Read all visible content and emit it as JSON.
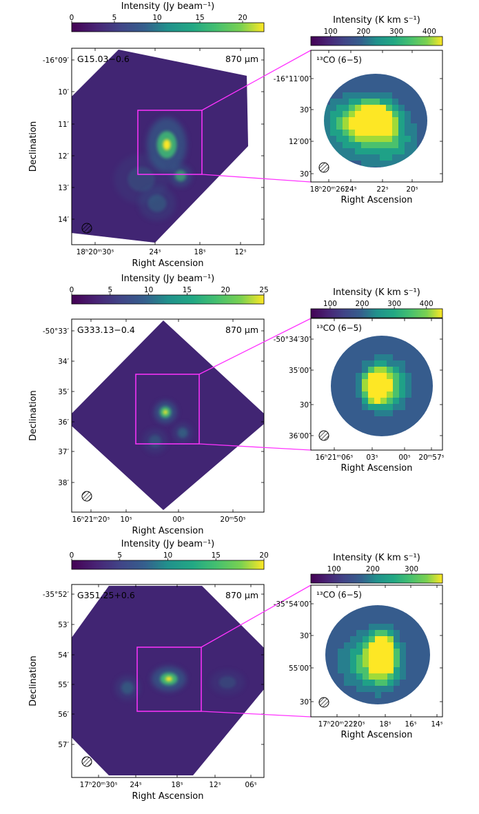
{
  "chart_data": [
    {
      "type": "heatmap",
      "panel": "large",
      "source_label": "G15.03−0.6",
      "band_label": "870 μm",
      "colorbar_label": "Intensity (Jy beam⁻¹)",
      "colorbar_ticks": [
        "0",
        "5",
        "10",
        "15",
        "20"
      ],
      "colorbar_values": [
        0,
        5,
        10,
        15,
        20
      ],
      "colorbar_range": [
        0,
        22.5
      ],
      "colormap": "viridis",
      "xlabel": "Right Ascension",
      "ylabel": "Declination",
      "x_ticks": [
        "18ʰ20ᵐ30ˢ",
        "24ˢ",
        "18ˢ",
        "12ˢ"
      ],
      "y_ticks": [
        "-16°09′",
        "10′",
        "11′",
        "12′",
        "13′",
        "14′"
      ],
      "peaks": [
        {
          "label": "main",
          "intensity": 22
        },
        {
          "label": "secondary",
          "intensity": 14
        }
      ],
      "zoom_box": "13CO(6−5) region"
    },
    {
      "type": "heatmap",
      "panel": "zoom",
      "line_label": "¹³CO (6−5)",
      "colorbar_label": "Intensity (K km s⁻¹)",
      "colorbar_ticks": [
        "100",
        "200",
        "300",
        "400"
      ],
      "colorbar_values": [
        100,
        200,
        300,
        400
      ],
      "colorbar_range": [
        40,
        440
      ],
      "colormap": "viridis",
      "xlabel": "Right Ascension",
      "x_ticks": [
        "18ʰ20ᵐ26ˢ",
        "24ˢ",
        "22ˢ",
        "20ˢ"
      ],
      "y_ticks": [
        "-16°11′00″",
        "30″",
        "12′00″",
        "30″"
      ]
    },
    {
      "type": "heatmap",
      "panel": "large",
      "source_label": "G333.13−0.4",
      "band_label": "870 μm",
      "colorbar_label": "Intensity (Jy beam⁻¹)",
      "colorbar_ticks": [
        "0",
        "5",
        "10",
        "15",
        "20",
        "25"
      ],
      "colorbar_values": [
        0,
        5,
        10,
        15,
        20,
        25
      ],
      "colorbar_range": [
        0,
        25
      ],
      "colormap": "viridis",
      "xlabel": "Right Ascension",
      "ylabel": "Declination",
      "x_ticks": [
        "16ʰ21ᵐ20ˢ",
        "10ˢ",
        "00ˢ",
        "20ᵐ50ˢ"
      ],
      "y_ticks": [
        "-50°33′",
        "34′",
        "35′",
        "36′",
        "37′",
        "38′"
      ],
      "peaks": [
        {
          "label": "main",
          "intensity": 25
        }
      ]
    },
    {
      "type": "heatmap",
      "panel": "zoom",
      "line_label": "¹³CO (6−5)",
      "colorbar_label": "Intensity (K km s⁻¹)",
      "colorbar_ticks": [
        "100",
        "200",
        "300",
        "400"
      ],
      "colorbar_values": [
        100,
        200,
        300,
        400
      ],
      "colorbar_range": [
        40,
        450
      ],
      "colormap": "viridis",
      "xlabel": "Right Ascension",
      "x_ticks": [
        "16ʰ21ᵐ06ˢ",
        "03ˢ",
        "00ˢ",
        "20ᵐ57ˢ"
      ],
      "y_ticks": [
        "-50°34′30″",
        "35′00″",
        "30″",
        "36′00″"
      ]
    },
    {
      "type": "heatmap",
      "panel": "large",
      "source_label": "G351.25+0.6",
      "band_label": "870 μm",
      "colorbar_label": "Intensity (Jy beam⁻¹)",
      "colorbar_ticks": [
        "0",
        "5",
        "10",
        "15",
        "20"
      ],
      "colorbar_values": [
        0,
        5,
        10,
        15,
        20
      ],
      "colorbar_range": [
        0,
        20
      ],
      "colormap": "viridis",
      "xlabel": "Right Ascension",
      "ylabel": "Declination",
      "x_ticks": [
        "17ʰ20ᵐ30ˢ",
        "24ˢ",
        "18ˢ",
        "12ˢ",
        "06ˢ"
      ],
      "y_ticks": [
        "-35°52′",
        "53′",
        "54′",
        "55′",
        "56′",
        "57′"
      ],
      "peaks": [
        {
          "label": "main",
          "intensity": 20
        }
      ]
    },
    {
      "type": "heatmap",
      "panel": "zoom",
      "line_label": "¹³CO (6−5)",
      "colorbar_label": "Intensity (K km s⁻¹)",
      "colorbar_ticks": [
        "100",
        "200",
        "300"
      ],
      "colorbar_values": [
        100,
        200,
        300
      ],
      "colorbar_range": [
        40,
        380
      ],
      "colormap": "viridis",
      "xlabel": "Right Ascension",
      "x_ticks": [
        "17ʰ20ᵐ22ˢ",
        "20ˢ",
        "18ˢ",
        "16ˢ",
        "14ˢ"
      ],
      "y_ticks": [
        "-35°54′00″",
        "30″",
        "55′00″",
        "30″"
      ]
    }
  ]
}
